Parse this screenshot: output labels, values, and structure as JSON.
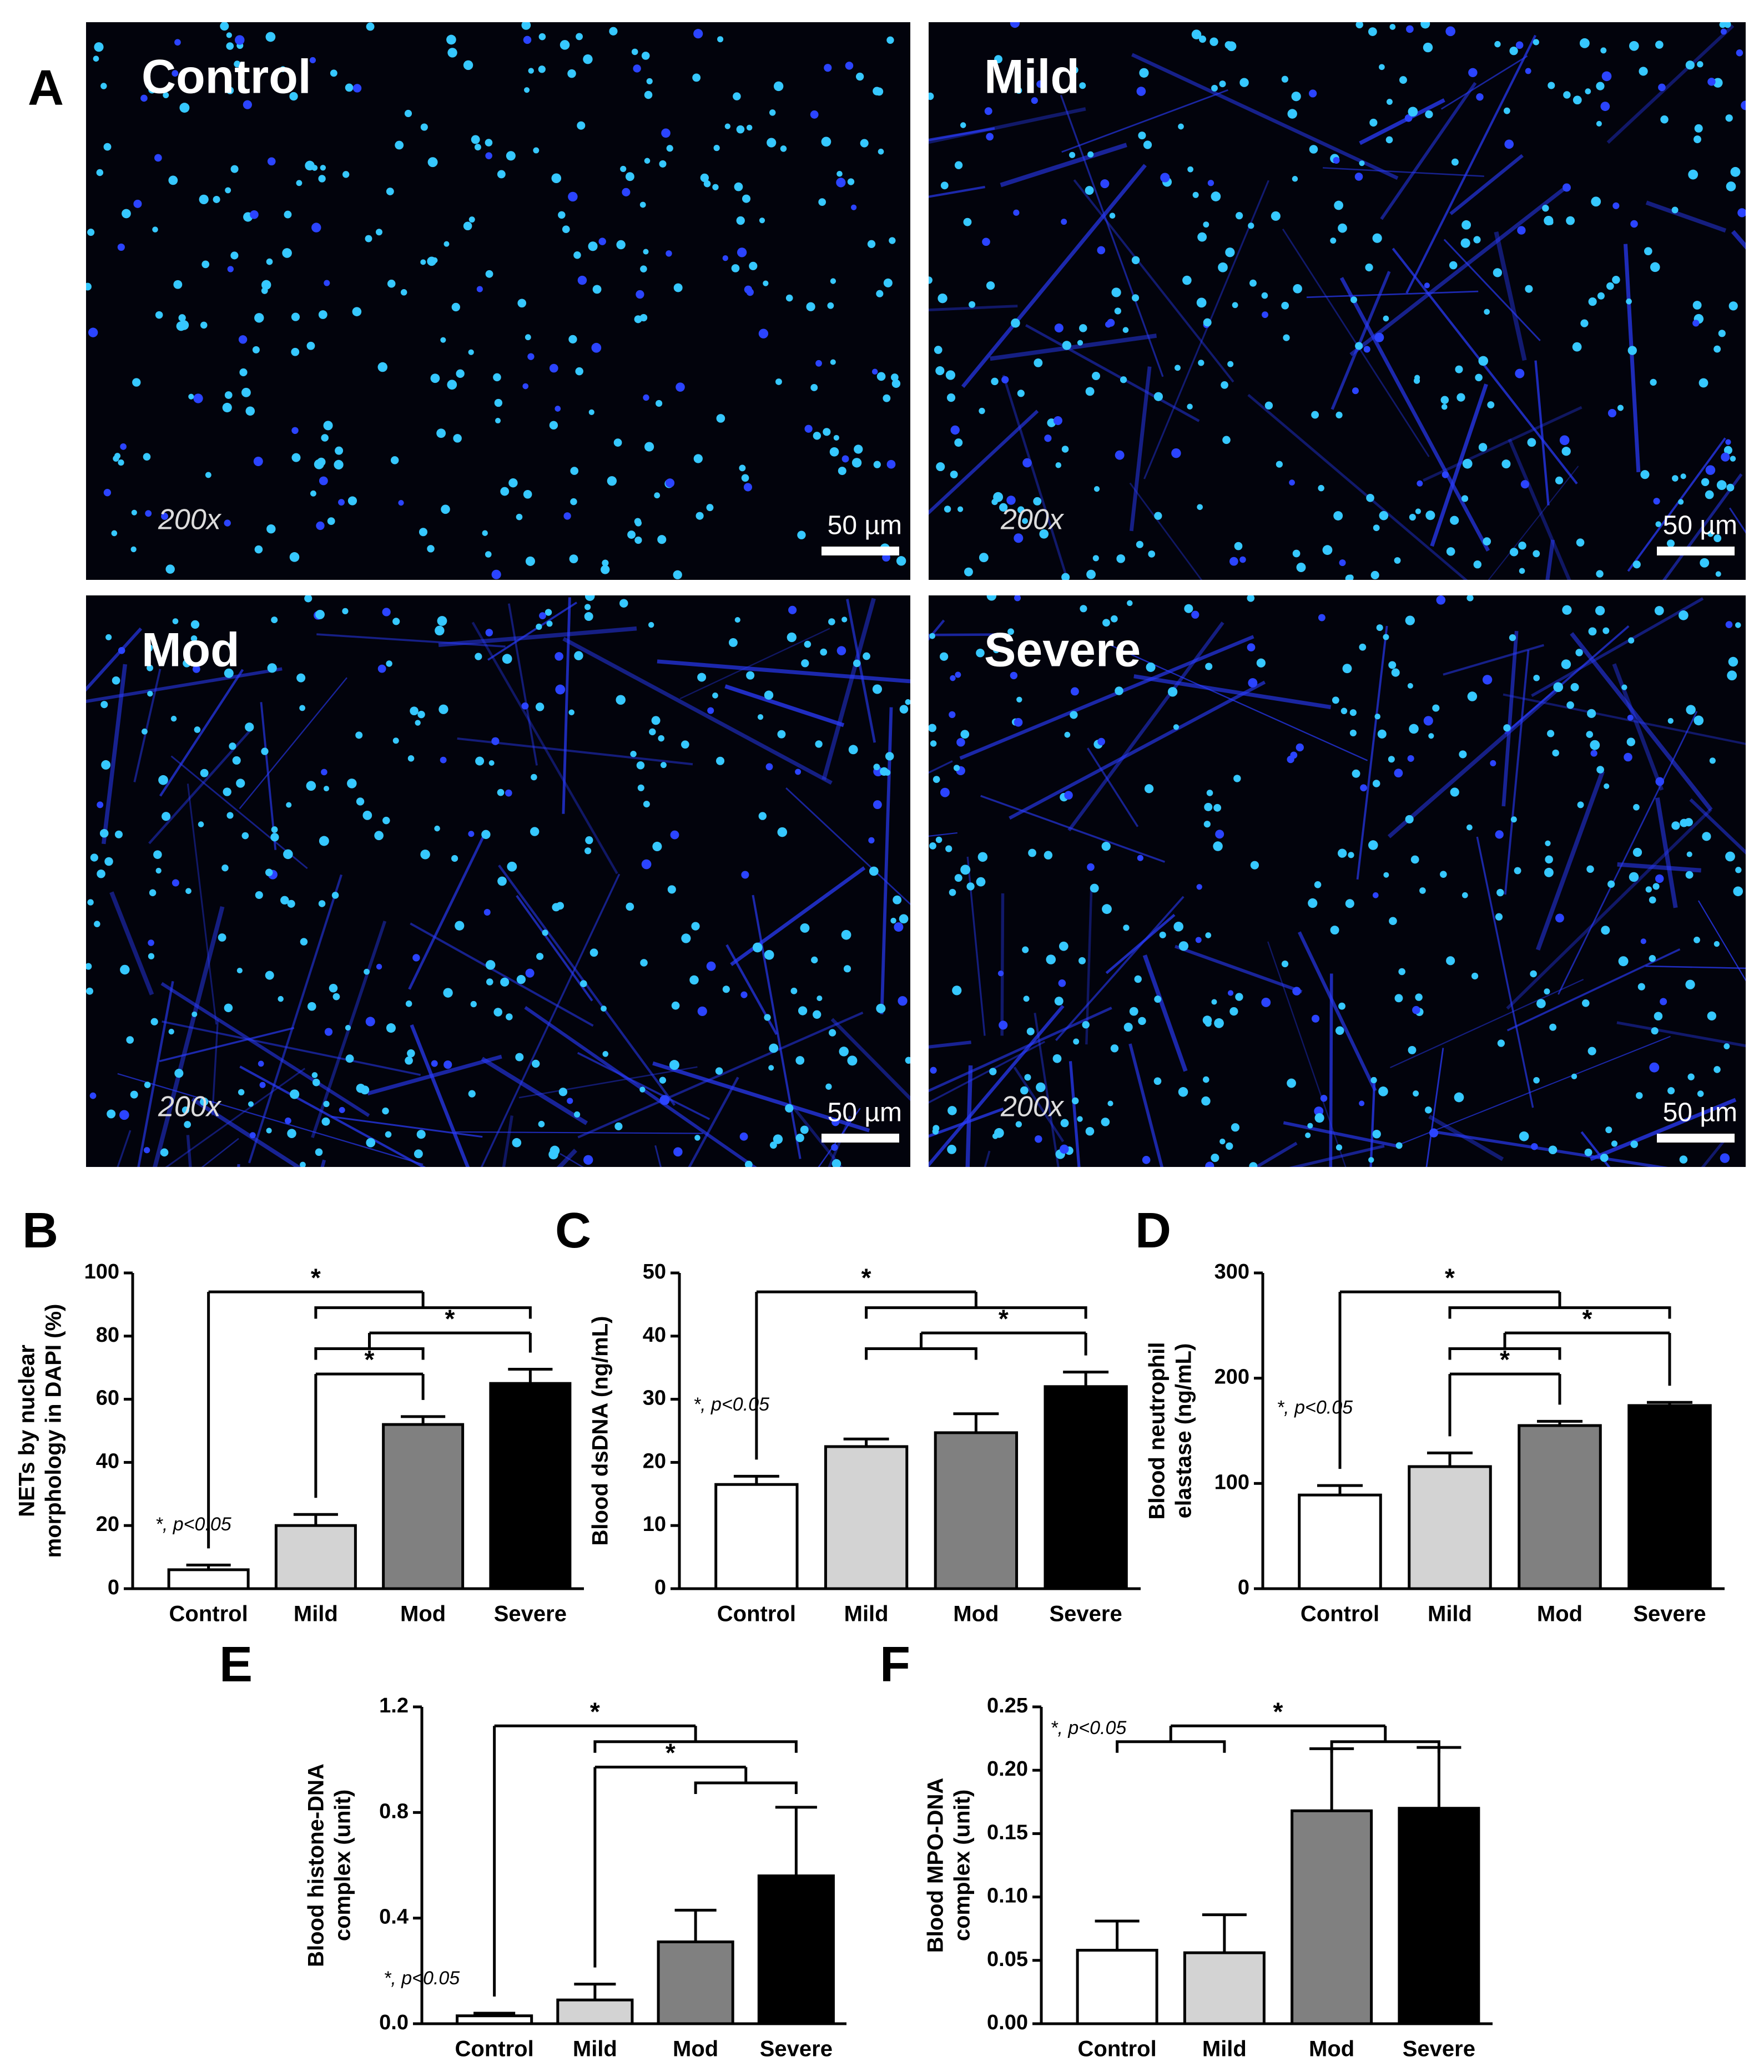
{
  "panel_a": {
    "label": "A",
    "images": [
      {
        "label": "Control",
        "magnification": "200x",
        "scale_bar": "50 µm"
      },
      {
        "label": "Mild",
        "magnification": "200x",
        "scale_bar": "50 µm"
      },
      {
        "label": "Mod",
        "magnification": "200x",
        "scale_bar": "50 µm"
      },
      {
        "label": "Severe",
        "magnification": "200x",
        "scale_bar": "50 µm"
      }
    ]
  },
  "chart_data": [
    {
      "type": "bar",
      "panel": "B",
      "y_label": [
        "NETs by nuclear",
        "morphology in DAPI (%)"
      ],
      "categories": [
        "Control",
        "Mild",
        "Mod",
        "Severe"
      ],
      "values": [
        6,
        20,
        52,
        65
      ],
      "errors": [
        1.5,
        3.5,
        2.5,
        4.5
      ],
      "colors": [
        "#ffffff",
        "#d3d3d3",
        "#808080",
        "#000000"
      ],
      "ylim": [
        0,
        100
      ],
      "yticks": [
        0,
        20,
        40,
        60,
        80,
        100
      ],
      "annotation": "*, p<0.05",
      "comparisons": [
        {
          "label": "*",
          "left": [
            "Control"
          ],
          "right": [
            "Mild",
            "Mod",
            "Severe"
          ]
        },
        {
          "label": "*",
          "left": [
            "Mild",
            "Mod"
          ],
          "right": [
            "Severe"
          ]
        },
        {
          "label": "*",
          "left": [
            "Mild"
          ],
          "right": [
            "Mod"
          ]
        }
      ]
    },
    {
      "type": "bar",
      "panel": "C",
      "y_label": [
        "Blood dsDNA (ng/mL)"
      ],
      "categories": [
        "Control",
        "Mild",
        "Mod",
        "Severe"
      ],
      "values": [
        16.5,
        22.5,
        24.7,
        32
      ],
      "errors": [
        1.3,
        1.2,
        3,
        2.3
      ],
      "colors": [
        "#ffffff",
        "#d3d3d3",
        "#808080",
        "#000000"
      ],
      "ylim": [
        0,
        50
      ],
      "yticks": [
        0,
        10,
        20,
        30,
        40,
        50
      ],
      "annotation": "*, p<0.05",
      "comparisons": [
        {
          "label": "*",
          "left": [
            "Control"
          ],
          "right": [
            "Mild",
            "Mod",
            "Severe"
          ]
        },
        {
          "label": "*",
          "left": [
            "Mild",
            "Mod"
          ],
          "right": [
            "Severe"
          ]
        }
      ]
    },
    {
      "type": "bar",
      "panel": "D",
      "y_label": [
        "Blood neutrophil",
        "elastase (ng/mL)"
      ],
      "categories": [
        "Control",
        "Mild",
        "Mod",
        "Severe"
      ],
      "values": [
        89,
        116,
        155,
        174
      ],
      "errors": [
        9,
        13,
        4,
        3
      ],
      "colors": [
        "#ffffff",
        "#d3d3d3",
        "#808080",
        "#000000"
      ],
      "ylim": [
        0,
        300
      ],
      "yticks": [
        0,
        100,
        200,
        300
      ],
      "annotation": "*, p<0.05",
      "comparisons": [
        {
          "label": "*",
          "left": [
            "Control"
          ],
          "right": [
            "Mild",
            "Mod",
            "Severe"
          ]
        },
        {
          "label": "*",
          "left": [
            "Mild",
            "Mod"
          ],
          "right": [
            "Severe"
          ]
        },
        {
          "label": "*",
          "left": [
            "Mild"
          ],
          "right": [
            "Mod"
          ]
        }
      ]
    },
    {
      "type": "bar",
      "panel": "E",
      "y_label": [
        "Blood histone-DNA",
        "complex (unit)"
      ],
      "categories": [
        "Control",
        "Mild",
        "Mod",
        "Severe"
      ],
      "values": [
        0.03,
        0.09,
        0.31,
        0.56
      ],
      "errors": [
        0.01,
        0.06,
        0.12,
        0.26
      ],
      "colors": [
        "#ffffff",
        "#d3d3d3",
        "#808080",
        "#000000"
      ],
      "ylim": [
        0,
        1.2
      ],
      "yticks": [
        {
          "value": 0,
          "label": "0.0"
        },
        0.4,
        0.8,
        1.2
      ],
      "annotation": "*, p<0.05",
      "comparisons": [
        {
          "label": "*",
          "left": [
            "Control"
          ],
          "right": [
            "Mild",
            "Mod",
            "Severe"
          ]
        },
        {
          "label": "*",
          "left": [
            "Mild"
          ],
          "right": [
            "Mod",
            "Severe"
          ]
        }
      ]
    },
    {
      "type": "bar",
      "panel": "F",
      "y_label": [
        "Blood MPO-DNA",
        "complex (unit)"
      ],
      "categories": [
        "Control",
        "Mild",
        "Mod",
        "Severe"
      ],
      "values": [
        0.058,
        0.056,
        0.168,
        0.17
      ],
      "errors": [
        0.023,
        0.03,
        0.049,
        0.048
      ],
      "colors": [
        "#ffffff",
        "#d3d3d3",
        "#808080",
        "#000000"
      ],
      "ylim": [
        0,
        0.25
      ],
      "yticks": [
        {
          "value": 0,
          "label": "0.00"
        },
        0.05,
        {
          "value": 0.1,
          "label": "0.10"
        },
        0.15,
        {
          "value": 0.2,
          "label": "0.20"
        },
        0.25
      ],
      "annotation": "*, p<0.05",
      "comparisons": [
        {
          "label": "*",
          "left": [
            "Control",
            "Mild"
          ],
          "right": [
            "Mod",
            "Severe"
          ]
        }
      ]
    }
  ]
}
